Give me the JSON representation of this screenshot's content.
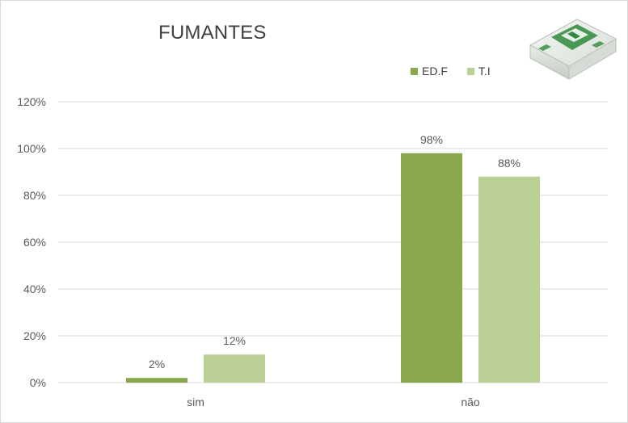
{
  "chart_data": {
    "type": "bar",
    "title": "FUMANTES",
    "categories": [
      "sim",
      "não"
    ],
    "series": [
      {
        "name": "ED.F",
        "values": [
          2,
          98
        ],
        "labels": [
          "2%",
          "98%"
        ],
        "color": "#8aa84e"
      },
      {
        "name": "T.I",
        "values": [
          12,
          88
        ],
        "labels": [
          "12%",
          "88%"
        ],
        "color": "#bad097"
      }
    ],
    "ylim": [
      0,
      120
    ],
    "yticks": [
      0,
      20,
      40,
      60,
      80,
      100,
      120
    ],
    "ytick_labels": [
      "0%",
      "20%",
      "40%",
      "60%",
      "80%",
      "100%",
      "120%"
    ],
    "grid": true,
    "legend_position": "top-right"
  },
  "colors": {
    "gridline": "#d9d9d9",
    "text": "#595959",
    "title": "#404040"
  },
  "icons": {
    "decoration": "cigarette-pack-icon"
  }
}
